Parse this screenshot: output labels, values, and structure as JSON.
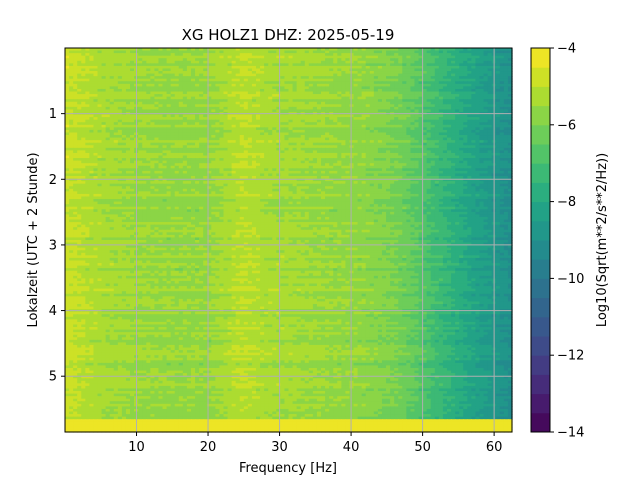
{
  "chart_data": {
    "type": "heatmap",
    "title": "XG HOLZ1  DHZ: 2025-05-19",
    "xlabel": "Frequency [Hz]",
    "ylabel": "Lokalzeit (UTC + 2 Stunde)",
    "xlim": [
      0,
      62.5
    ],
    "ylim": [
      5.85,
      0
    ],
    "x_ticks": [
      10,
      20,
      30,
      40,
      50,
      60
    ],
    "x_tick_labels": [
      "10",
      "20",
      "30",
      "40",
      "50",
      "60"
    ],
    "y_ticks": [
      1,
      2,
      3,
      4,
      5
    ],
    "y_tick_labels": [
      "1",
      "2",
      "3",
      "4",
      "5"
    ],
    "grid": true,
    "colorbar": {
      "label": "Log10(Sqrt(m**2/s**2/Hz))",
      "range": [
        -14,
        -4
      ],
      "ticks": [
        -4,
        -6,
        -8,
        -10,
        -12,
        -14
      ],
      "tick_labels": [
        "−4",
        "−6",
        "−8",
        "−10",
        "−12",
        "−14"
      ],
      "colormap": "viridis",
      "levels": 20
    },
    "frequency_profile": {
      "frequency_hz": [
        0,
        2,
        5,
        10,
        15,
        20,
        25,
        28,
        32,
        38,
        42,
        46,
        49,
        51,
        53,
        55,
        57,
        60,
        62.5
      ],
      "value": [
        -4.8,
        -5.0,
        -5.3,
        -5.5,
        -5.6,
        -5.6,
        -5.0,
        -5.3,
        -5.4,
        -5.6,
        -5.7,
        -6.0,
        -6.5,
        -7.0,
        -7.4,
        -7.8,
        -8.2,
        -8.7,
        -9.1
      ]
    },
    "bottom_band": {
      "time_from": 5.65,
      "time_to": 5.85,
      "value": -4.2
    },
    "colors": {
      "grid": "#b0b0b0",
      "axes": "#000000"
    }
  }
}
